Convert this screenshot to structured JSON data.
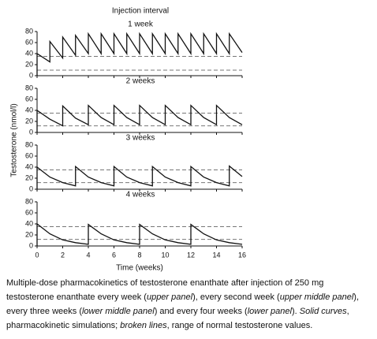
{
  "title": "Injection interval",
  "ylabel": "Testosterone (nmol/l)",
  "xlabel": "Time (weeks)",
  "chart_data": [
    {
      "type": "line",
      "title": "1 week",
      "xlim": [
        0,
        16
      ],
      "ylim": [
        0,
        80
      ],
      "yticks": [
        0,
        20,
        40,
        60,
        80
      ],
      "xticks": [
        0,
        2,
        4,
        6,
        8,
        10,
        12,
        14,
        16
      ],
      "normal_range": [
        10,
        35
      ],
      "range_color": "#777777",
      "x": [
        0,
        0,
        1,
        1,
        2,
        2,
        3,
        3,
        4,
        4,
        5,
        5,
        6,
        6,
        7,
        7,
        8,
        8,
        9,
        9,
        10,
        10,
        11,
        11,
        12,
        12,
        13,
        13,
        14,
        14,
        15,
        15,
        16
      ],
      "series": [
        {
          "color": "#111111",
          "values": [
            0,
            40,
            25,
            62,
            32,
            70,
            37,
            73,
            40,
            76,
            40,
            76,
            40,
            76,
            40,
            76,
            40,
            76,
            40,
            76,
            40,
            76,
            40,
            76,
            40,
            76,
            40,
            76,
            40,
            76,
            40,
            76,
            42
          ]
        }
      ]
    },
    {
      "type": "line",
      "title": "2 weeks",
      "xlim": [
        0,
        16
      ],
      "ylim": [
        0,
        80
      ],
      "yticks": [
        0,
        20,
        40,
        60,
        80
      ],
      "xticks": [
        0,
        2,
        4,
        6,
        8,
        10,
        12,
        14,
        16
      ],
      "normal_range": [
        12,
        35
      ],
      "range_color": "#777777",
      "x": [
        0,
        0,
        1,
        2,
        2,
        3,
        4,
        4,
        5,
        6,
        6,
        7,
        8,
        8,
        9,
        10,
        10,
        11,
        12,
        12,
        13,
        14,
        14,
        15,
        16
      ],
      "series": [
        {
          "color": "#111111",
          "values": [
            0,
            40,
            24,
            12,
            48,
            26,
            14,
            49,
            27,
            14,
            49,
            27,
            14,
            49,
            27,
            14,
            49,
            27,
            14,
            49,
            27,
            14,
            49,
            27,
            14
          ]
        }
      ]
    },
    {
      "type": "line",
      "title": "3 weeks",
      "xlim": [
        0,
        16
      ],
      "ylim": [
        0,
        80
      ],
      "yticks": [
        0,
        20,
        40,
        60,
        80
      ],
      "xticks": [
        0,
        2,
        4,
        6,
        8,
        10,
        12,
        14,
        16
      ],
      "normal_range": [
        12,
        35
      ],
      "range_color": "#777777",
      "x": [
        0,
        0,
        1,
        2,
        3,
        3,
        4,
        5,
        6,
        6,
        7,
        8,
        9,
        9,
        10,
        11,
        12,
        12,
        13,
        14,
        15,
        15,
        16
      ],
      "series": [
        {
          "color": "#111111",
          "values": [
            0,
            40,
            22,
            12,
            6,
            41,
            22,
            12,
            6,
            41,
            22,
            12,
            6,
            41,
            22,
            12,
            6,
            41,
            22,
            12,
            6,
            42,
            23
          ]
        }
      ]
    },
    {
      "type": "line",
      "title": "4 weeks",
      "xlim": [
        0,
        16
      ],
      "ylim": [
        0,
        80
      ],
      "yticks": [
        0,
        20,
        40,
        60,
        80
      ],
      "xticks": [
        0,
        2,
        4,
        6,
        8,
        10,
        12,
        14,
        16
      ],
      "normal_range": [
        12,
        35
      ],
      "range_color": "#777777",
      "show_xtick_labels": true,
      "x": [
        0,
        0,
        1,
        2,
        3,
        4,
        4,
        5,
        6,
        7,
        8,
        8,
        9,
        10,
        11,
        12,
        12,
        13,
        14,
        15,
        16
      ],
      "series": [
        {
          "color": "#111111",
          "values": [
            0,
            40,
            22,
            11,
            6,
            3,
            39,
            22,
            11,
            6,
            3,
            39,
            22,
            11,
            6,
            3,
            39,
            22,
            11,
            6,
            3
          ]
        }
      ]
    }
  ],
  "caption": [
    {
      "text": "Multiple-dose pharmacokinetics of testosterone enanthate after injection of 250 mg testosterone enanthate every week (",
      "italic": false
    },
    {
      "text": "upper panel",
      "italic": true
    },
    {
      "text": "), every second week (",
      "italic": false
    },
    {
      "text": "upper middle panel",
      "italic": true
    },
    {
      "text": "), every three weeks (",
      "italic": false
    },
    {
      "text": "lower middle panel",
      "italic": true
    },
    {
      "text": ") and every four weeks (",
      "italic": false
    },
    {
      "text": "lower panel",
      "italic": true
    },
    {
      "text": "). ",
      "italic": false
    },
    {
      "text": "Solid curves",
      "italic": true
    },
    {
      "text": ", pharmacokinetic simulations; ",
      "italic": false
    },
    {
      "text": "broken lines",
      "italic": true
    },
    {
      "text": ", range of normal testosterone values.",
      "italic": false
    }
  ]
}
